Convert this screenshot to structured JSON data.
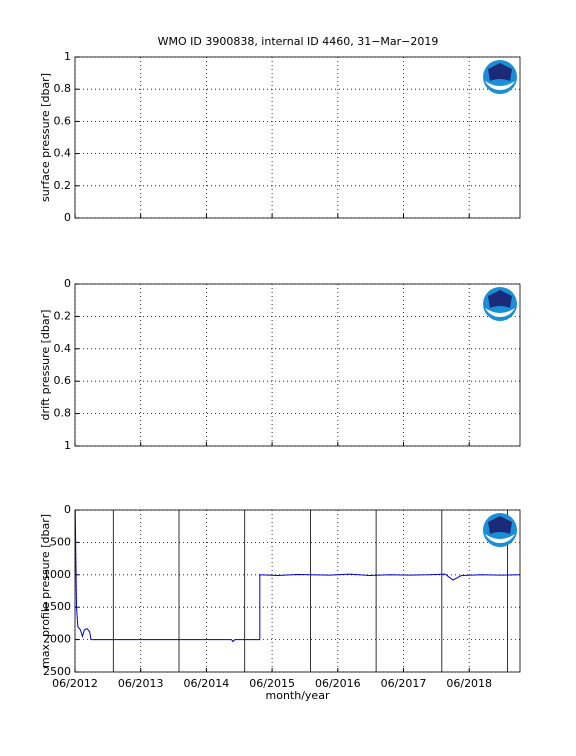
{
  "chart_data": [
    {
      "type": "line",
      "title": "WMO ID 3900838, internal ID 4460, 31−Mar−2019",
      "ylabel": "surface pressure [dbar]",
      "ylim": [
        0,
        1
      ],
      "yticks": [
        0,
        0.2,
        0.4,
        0.6,
        0.8,
        1
      ],
      "y_reversed": false,
      "grid": true
    },
    {
      "type": "line",
      "ylabel": "drift pressure [dbar]",
      "ylim": [
        0,
        1
      ],
      "yticks": [
        0,
        0.2,
        0.4,
        0.6,
        0.8,
        1
      ],
      "y_reversed": true,
      "grid": true
    },
    {
      "type": "line",
      "ylabel": "max. profile pressure [dbar]",
      "xlabel": "month/year",
      "ylim": [
        0,
        2500
      ],
      "yticks": [
        0,
        500,
        1000,
        1500,
        2000,
        2500
      ],
      "y_reversed": true,
      "grid": true,
      "xlim": [
        2012.417,
        2019.19
      ],
      "xticks": [
        {
          "value": 2012.417,
          "label": "06/2012"
        },
        {
          "value": 2013.417,
          "label": "06/2013"
        },
        {
          "value": 2014.417,
          "label": "06/2014"
        },
        {
          "value": 2015.417,
          "label": "06/2015"
        },
        {
          "value": 2016.417,
          "label": "06/2016"
        },
        {
          "value": 2017.417,
          "label": "06/2017"
        },
        {
          "value": 2018.417,
          "label": "06/2018"
        }
      ],
      "color": "#0000cc",
      "x": [
        2012.42,
        2012.44,
        2012.46,
        2012.5,
        2012.53,
        2012.56,
        2012.6,
        2012.64,
        2012.66,
        2013.0,
        2014.0,
        2014.8,
        2014.82,
        2014.85,
        2015.23,
        2015.23,
        2015.5,
        2015.8,
        2016.0,
        2016.3,
        2016.6,
        2016.9,
        2017.2,
        2017.5,
        2017.8,
        2018.05,
        2018.17,
        2018.3,
        2018.6,
        2018.9,
        2019.19
      ],
      "values": [
        0,
        1500,
        1800,
        1850,
        1950,
        1850,
        1830,
        1880,
        2000,
        2000,
        2000,
        2000,
        2030,
        2000,
        2000,
        1000,
        1010,
        995,
        1000,
        1005,
        990,
        1010,
        1000,
        1005,
        1000,
        990,
        1080,
        1010,
        1000,
        1005,
        1000
      ]
    }
  ]
}
